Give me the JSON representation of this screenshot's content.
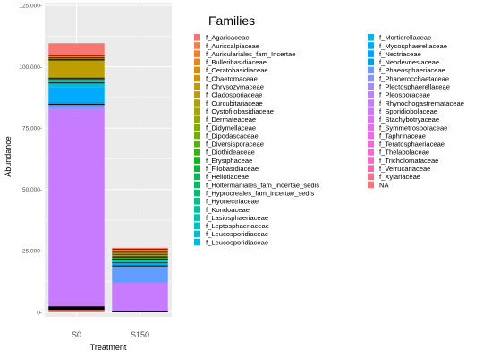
{
  "chart_data": {
    "type": "stacked-bar",
    "ylabel": "Abundance",
    "xlabel": "Treatment",
    "ylim": [
      0,
      125000
    ],
    "yticks": [
      0,
      25000,
      50000,
      75000,
      100000,
      125000
    ],
    "ytick_labels": [
      "0-",
      "25,000-",
      "50,000-",
      "75,000-",
      "100,000-",
      "125,000-"
    ],
    "grid": true,
    "panel_background": "#ebebeb",
    "legend_title": "Families",
    "legend_position": "right",
    "categories": [
      "S0",
      "S150"
    ],
    "families": [
      {
        "name": "f_Agaricaceae",
        "color": "#F8766D"
      },
      {
        "name": "f_Auriscalpiaceae",
        "color": "#F47D4C"
      },
      {
        "name": "f_Auriculariales_fam_Incertae",
        "color": "#EF8129"
      },
      {
        "name": "f_Bulleribasidiaceae",
        "color": "#E7861B"
      },
      {
        "name": "f_Ceratobasidiaceae",
        "color": "#DE8C00"
      },
      {
        "name": "f_Chaetomaceae",
        "color": "#D49200"
      },
      {
        "name": "f_Chrysozymaceae",
        "color": "#C99800"
      },
      {
        "name": "f_Cladosporiaceae",
        "color": "#BD9D00"
      },
      {
        "name": "f_Curcubitariaceae",
        "color": "#B0A100"
      },
      {
        "name": "f_Cystofilobasidiaceae",
        "color": "#A3A500"
      },
      {
        "name": "f_Dermateaceae",
        "color": "#93AA00"
      },
      {
        "name": "f_Didymellaceae",
        "color": "#83AD00"
      },
      {
        "name": "f_Dipodascaceae",
        "color": "#6FB000"
      },
      {
        "name": "f_Diversisporaceae",
        "color": "#56B300"
      },
      {
        "name": "f_Diothideaceae",
        "color": "#30B600"
      },
      {
        "name": "f_Erysiphaceae",
        "color": "#00B81A"
      },
      {
        "name": "f_Filobasidiaceae",
        "color": "#00BA38"
      },
      {
        "name": "f_Heliotiaceae",
        "color": "#00BB4E"
      },
      {
        "name": "f_Holtermaniales_fam_incertae_sedis",
        "color": "#00BC63"
      },
      {
        "name": "f_Hyprocreales_fam_incertae_sedis",
        "color": "#00BD78"
      },
      {
        "name": "f_Hyonectriaceae",
        "color": "#00BF8C"
      },
      {
        "name": "f_Kondoaceae",
        "color": "#00C09F"
      },
      {
        "name": "f_Lasiosphaeriaceae",
        "color": "#00C0B2"
      },
      {
        "name": "f_Leptosphaeriaceae",
        "color": "#00BFC4"
      },
      {
        "name": "f_Leucosporidiaceae",
        "color": "#00BCD4"
      },
      {
        "name": "f_Leucosporidiaceae",
        "color": "#00B8E3"
      },
      {
        "name": "f_Mortierellaceae",
        "color": "#00B2F0"
      },
      {
        "name": "f_Mycosphaerellaceae",
        "color": "#00ABFD"
      },
      {
        "name": "f_Nectriaceae",
        "color": "#00A3FF"
      },
      {
        "name": "f_Neodevriesiaceae",
        "color": "#00A0E6"
      },
      {
        "name": "f_Phaeosphaeriaceae",
        "color": "#619CFF"
      },
      {
        "name": "f_Phanerocchaetaceae",
        "color": "#8994FF"
      },
      {
        "name": "f_Plectosphaerellaceae",
        "color": "#A58AFF"
      },
      {
        "name": "f_Pleosporaceae",
        "color": "#B983FF"
      },
      {
        "name": "f_Rhynochogastremataceae",
        "color": "#C77CFF"
      },
      {
        "name": "f_Sporidiobolaceae",
        "color": "#D376FF"
      },
      {
        "name": "f_Stachybotryaceae",
        "color": "#DF70F9"
      },
      {
        "name": "f_Symmetrosporaceae",
        "color": "#E76BF3"
      },
      {
        "name": "f_Taphrinaceae",
        "color": "#EF67EB"
      },
      {
        "name": "f_Teratosphaeriaceae",
        "color": "#F564E3"
      },
      {
        "name": "f_Thelabolaceae",
        "color": "#F964D9"
      },
      {
        "name": "f_Tricholomataceae",
        "color": "#FC64CF"
      },
      {
        "name": "f_Verrucariaceae",
        "color": "#FF64B0"
      },
      {
        "name": "f_Xylariaceae",
        "color": "#FF6C91"
      },
      {
        "name": "NA",
        "color": "#FF7373"
      }
    ],
    "bars": [
      {
        "category": "S0",
        "segments": [
          {
            "family": "f_Agaricaceae",
            "value": 1000,
            "color": "#F8766D"
          },
          {
            "family": "",
            "value": 1500,
            "color": "#000000"
          },
          {
            "family": "f_Rhynochogastremataceae",
            "value": 79500,
            "color": "#C77CFF"
          },
          {
            "family": "f_Pleosporaceae",
            "value": 600,
            "color": "#B983FF"
          },
          {
            "family": "f_Plectosphaerellaceae",
            "value": 700,
            "color": "#A58AFF"
          },
          {
            "family": "f_Phaeosphaeriaceae",
            "value": 1200,
            "color": "#619CFF"
          },
          {
            "family": "",
            "value": 400,
            "color": "#000000"
          },
          {
            "family": "f_Neodevriesiaceae",
            "value": 900,
            "color": "#00A0E6"
          },
          {
            "family": "f_Mycosphaerellaceae",
            "value": 5800,
            "color": "#00ABFD"
          },
          {
            "family": "f_Mortierellaceae",
            "value": 400,
            "color": "#00B2F0"
          },
          {
            "family": "f_Leucosporidiaceae",
            "value": 1200,
            "color": "#00BCD4"
          },
          {
            "family": "",
            "value": 400,
            "color": "#000000"
          },
          {
            "family": "f_Lasiosphaeriaceae",
            "value": 500,
            "color": "#00C0B2"
          },
          {
            "family": "",
            "value": 300,
            "color": "#000000"
          },
          {
            "family": "f_Kondoaceae",
            "value": 300,
            "color": "#00C09F"
          },
          {
            "family": "",
            "value": 300,
            "color": "#000000"
          },
          {
            "family": "f_Dermateaceae",
            "value": 200,
            "color": "#93AA00"
          },
          {
            "family": "",
            "value": 400,
            "color": "#000000"
          },
          {
            "family": "f_Cystofilobasidiaceae",
            "value": 400,
            "color": "#A3A500"
          },
          {
            "family": "f_Cladosporiaceae",
            "value": 6600,
            "color": "#BD9D00"
          },
          {
            "family": "",
            "value": 500,
            "color": "#000000"
          },
          {
            "family": "f_Ceratobasidiaceae",
            "value": 300,
            "color": "#DE8C00"
          },
          {
            "family": "",
            "value": 400,
            "color": "#000000"
          },
          {
            "family": "f_Auriculariales_fam_Incertae",
            "value": 600,
            "color": "#EF8129"
          },
          {
            "family": "",
            "value": 300,
            "color": "#000000"
          },
          {
            "family": "f_Agaricaceae",
            "value": 4900,
            "color": "#F8766D"
          }
        ]
      },
      {
        "category": "S150",
        "segments": [
          {
            "family": "",
            "value": 400,
            "color": "#000000"
          },
          {
            "family": "f_Rhynochogastremataceae",
            "value": 11800,
            "color": "#C77CFF"
          },
          {
            "family": "f_Phaeosphaeriaceae",
            "value": 6500,
            "color": "#619CFF"
          },
          {
            "family": "",
            "value": 400,
            "color": "#000000"
          },
          {
            "family": "f_Mycosphaerellaceae",
            "value": 900,
            "color": "#00ABFD"
          },
          {
            "family": "",
            "value": 300,
            "color": "#000000"
          },
          {
            "family": "f_Leucosporidiaceae",
            "value": 500,
            "color": "#00BCD4"
          },
          {
            "family": "f_Lasiosphaeriaceae",
            "value": 700,
            "color": "#00C0B2"
          },
          {
            "family": "",
            "value": 400,
            "color": "#000000"
          },
          {
            "family": "f_Erysiphaceae",
            "value": 500,
            "color": "#00B81A"
          },
          {
            "family": "",
            "value": 400,
            "color": "#000000"
          },
          {
            "family": "f_Cladosporiaceae",
            "value": 700,
            "color": "#BD9D00"
          },
          {
            "family": "",
            "value": 300,
            "color": "#000000"
          },
          {
            "family": "f_Chaetomaceae",
            "value": 500,
            "color": "#D49200"
          },
          {
            "family": "",
            "value": 300,
            "color": "#000000"
          },
          {
            "family": "f_Auriculariales_fam_Incertae",
            "value": 900,
            "color": "#EF8129"
          },
          {
            "family": "",
            "value": 300,
            "color": "#000000"
          },
          {
            "family": "f_Agaricaceae",
            "value": 500,
            "color": "#F8766D"
          }
        ]
      }
    ]
  }
}
